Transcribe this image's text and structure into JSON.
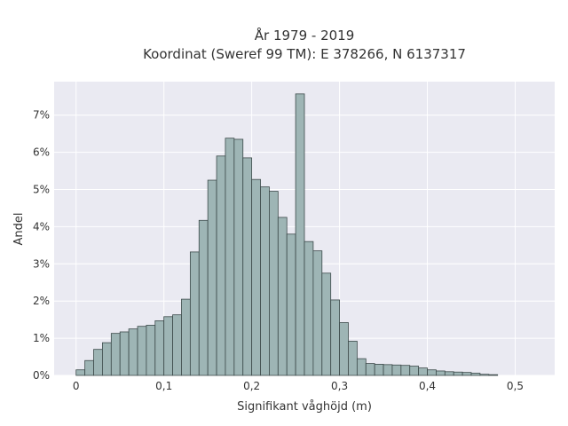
{
  "chart_data": {
    "type": "bar",
    "title_line1": "År 1979 - 2019",
    "title_line2": "Koordinat (Sweref 99 TM): E 378266, N 6137317",
    "xlabel": "Signifikant våghöjd (m)",
    "ylabel": "Andel",
    "xlim": [
      -0.025,
      0.545
    ],
    "ylim": [
      0,
      0.079
    ],
    "grid": true,
    "bin_width": 0.01,
    "bin_starts": [
      0,
      0.01,
      0.02,
      0.03,
      0.04,
      0.05,
      0.06,
      0.07,
      0.08,
      0.09,
      0.1,
      0.11,
      0.12,
      0.13,
      0.14,
      0.15,
      0.16,
      0.17,
      0.18,
      0.19,
      0.2,
      0.21,
      0.22,
      0.23,
      0.24,
      0.25,
      0.26,
      0.27,
      0.28,
      0.29,
      0.3,
      0.31,
      0.32,
      0.33,
      0.34,
      0.35,
      0.36,
      0.37,
      0.38,
      0.39,
      0.4,
      0.41,
      0.42,
      0.43,
      0.44,
      0.45,
      0.46,
      0.47,
      0.48,
      0.49
    ],
    "values": [
      0.0015,
      0.004,
      0.007,
      0.0088,
      0.0113,
      0.0117,
      0.0125,
      0.0132,
      0.0135,
      0.0147,
      0.0158,
      0.0163,
      0.0205,
      0.0332,
      0.0417,
      0.0525,
      0.059,
      0.0638,
      0.0635,
      0.0585,
      0.0527,
      0.0507,
      0.0495,
      0.0425,
      0.038,
      0.0757,
      0.036,
      0.0335,
      0.0275,
      0.0203,
      0.0142,
      0.0092,
      0.0045,
      0.0032,
      0.003,
      0.0029,
      0.0028,
      0.0027,
      0.0025,
      0.002,
      0.0015,
      0.0012,
      0.001,
      0.0009,
      0.0008,
      0.0006,
      0.0003,
      0.0002,
      0,
      0
    ],
    "x_ticks": [
      {
        "value": 0,
        "label": "0"
      },
      {
        "value": 0.1,
        "label": "0,1"
      },
      {
        "value": 0.2,
        "label": "0,2"
      },
      {
        "value": 0.3,
        "label": "0,3"
      },
      {
        "value": 0.4,
        "label": "0,4"
      },
      {
        "value": 0.5,
        "label": "0,5"
      }
    ],
    "y_ticks": [
      {
        "value": 0,
        "label": "0%"
      },
      {
        "value": 0.01,
        "label": "1%"
      },
      {
        "value": 0.02,
        "label": "2%"
      },
      {
        "value": 0.03,
        "label": "3%"
      },
      {
        "value": 0.04,
        "label": "4%"
      },
      {
        "value": 0.05,
        "label": "5%"
      },
      {
        "value": 0.06,
        "label": "6%"
      },
      {
        "value": 0.07,
        "label": "7%"
      }
    ],
    "colors": {
      "plot_background": "#eaeaf2",
      "grid": "#ffffff",
      "bar_fill": "#9eb5b5",
      "bar_edge": "#3c4a4a"
    }
  }
}
